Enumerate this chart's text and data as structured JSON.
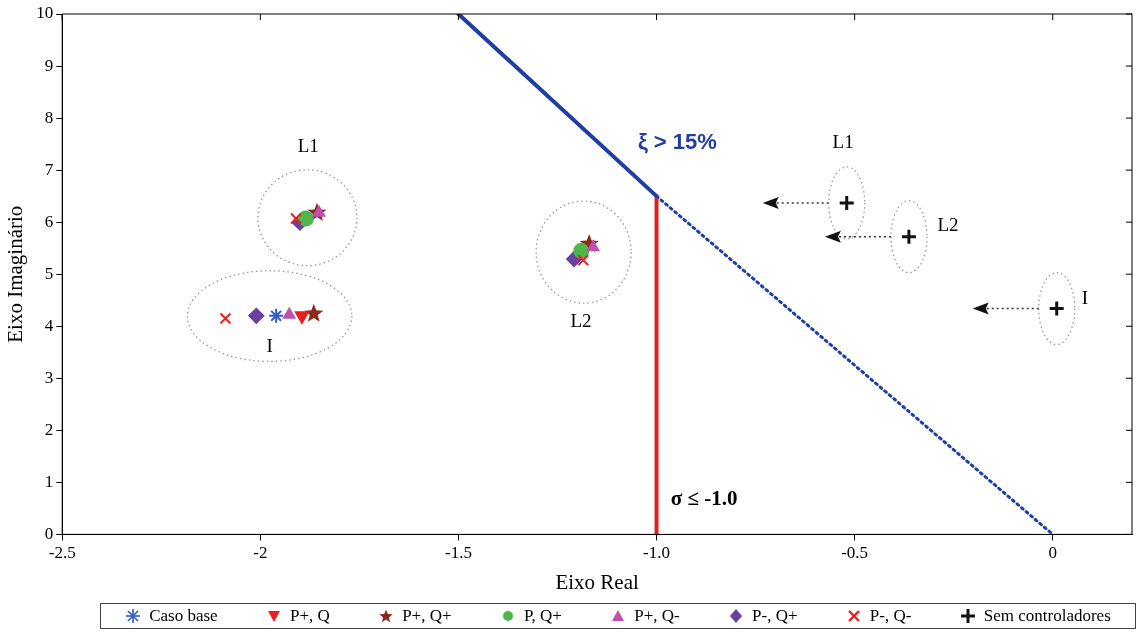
{
  "chart_data": {
    "type": "scatter",
    "xlabel": "Eixo Real",
    "ylabel": "Eixo Imaginário",
    "xlim": [
      -2.5,
      0.2
    ],
    "ylim": [
      0,
      10
    ],
    "xticks": [
      -2.5,
      -2,
      -1.5,
      {
        "value": -1,
        "label": "-1.0"
      },
      -0.5,
      0
    ],
    "yticks": [
      0,
      1,
      2,
      3,
      4,
      5,
      6,
      7,
      8,
      9,
      10
    ],
    "grid": false,
    "legend": "bottom",
    "series": [
      {
        "name": "Caso base",
        "type": "scatter",
        "marker": "cross",
        "color": "#2f5cc4",
        "x": [
          -1.96
        ],
        "values": [
          4.2
        ]
      },
      {
        "name": "P+, Q",
        "type": "scatter",
        "marker": "triangle",
        "color": "#e8201e",
        "x": [
          -1.895
        ],
        "values": [
          4.2
        ]
      },
      {
        "name": "P+, Q+",
        "type": "scatter",
        "marker": "star",
        "color": "#8b2a1a",
        "x": [
          -1.857,
          -1.17,
          -1.865
        ],
        "values": [
          6.18,
          5.58,
          4.24
        ]
      },
      {
        "name": "P, Q+",
        "type": "scatter",
        "marker": "circle",
        "color": "#4cb84c",
        "x": [
          -1.885,
          -1.19
        ],
        "values": [
          6.07,
          5.45
        ]
      },
      {
        "name": "P+, Q-",
        "type": "scatter",
        "marker": "triangle",
        "color": "#c050b0",
        "x": [
          -1.852,
          -1.16,
          -1.927
        ],
        "values": [
          6.18,
          5.52,
          4.22
        ]
      },
      {
        "name": "P-, Q+",
        "type": "scatter",
        "marker": "diamond",
        "color": "#6a3fa0",
        "x": [
          -1.9,
          -1.208,
          -2.01
        ],
        "values": [
          5.99,
          5.29,
          4.2
        ]
      },
      {
        "name": "P-, Q-",
        "type": "scatter",
        "marker": "cross",
        "color": "#e8201e",
        "x": [
          -1.91,
          -1.185,
          -2.088
        ],
        "values": [
          6.07,
          5.27,
          4.15
        ]
      },
      {
        "name": "Sem controladores",
        "type": "scatter",
        "marker": "cross",
        "color": "#111111",
        "x": [
          -0.52,
          -0.363,
          0.01
        ],
        "values": [
          6.37,
          5.72,
          4.34
        ]
      },
      {
        "type": "line",
        "marker": "none",
        "line_style": "solid",
        "color": "#1f3fa0",
        "x": [
          -1.5,
          -1
        ],
        "values": [
          10,
          6.5
        ]
      },
      {
        "type": "line",
        "marker": "none",
        "line_style": "dotted",
        "color": "#1f3fa0",
        "x": [
          -1,
          0
        ],
        "values": [
          6.5,
          0
        ]
      },
      {
        "type": "line",
        "marker": "none",
        "line_style": "solid",
        "color": "#e02020",
        "x": [
          -1,
          -1
        ],
        "values": [
          0,
          6.5
        ]
      }
    ],
    "annotations": [
      "ξ > 15%",
      "σ ≤ -1.0",
      "L1",
      "L2",
      "I",
      "L1",
      "L2",
      "I"
    ]
  }
}
